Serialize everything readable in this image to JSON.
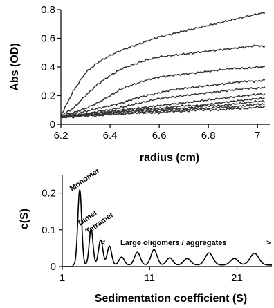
{
  "chart_data": [
    {
      "type": "line",
      "xlabel": "radius (cm)",
      "ylabel": "Abs (OD)",
      "xlim": [
        6.2,
        7.05
      ],
      "ylim": [
        0,
        0.8
      ],
      "xticks": [
        6.2,
        6.4,
        6.6,
        6.8,
        7
      ],
      "xtick_labels": [
        "6.2",
        "6.4",
        "6.6",
        "6.8",
        "7"
      ],
      "yticks": [
        0,
        0.2,
        0.4,
        0.6,
        0.8
      ],
      "ytick_labels": [
        "0",
        "0.2",
        "0.4",
        "0.6",
        "0.8"
      ],
      "grid": false,
      "line_color": "#333333",
      "x": [
        6.2,
        6.25,
        6.3,
        6.35,
        6.4,
        6.45,
        6.5,
        6.55,
        6.6,
        6.65,
        6.7,
        6.75,
        6.8,
        6.85,
        6.9,
        6.95,
        7.0,
        7.03
      ],
      "series": [
        {
          "values": [
            0.06,
            0.23,
            0.36,
            0.43,
            0.48,
            0.52,
            0.55,
            0.58,
            0.61,
            0.63,
            0.65,
            0.67,
            0.69,
            0.71,
            0.73,
            0.75,
            0.77,
            0.78
          ]
        },
        {
          "values": [
            0.06,
            0.11,
            0.2,
            0.28,
            0.34,
            0.39,
            0.42,
            0.45,
            0.47,
            0.48,
            0.49,
            0.5,
            0.51,
            0.52,
            0.53,
            0.54,
            0.55,
            0.54
          ]
        },
        {
          "values": [
            0.06,
            0.08,
            0.11,
            0.15,
            0.2,
            0.25,
            0.28,
            0.31,
            0.33,
            0.34,
            0.35,
            0.36,
            0.37,
            0.38,
            0.39,
            0.39,
            0.4,
            0.4
          ]
        },
        {
          "values": [
            0.05,
            0.07,
            0.09,
            0.11,
            0.13,
            0.15,
            0.18,
            0.2,
            0.22,
            0.24,
            0.25,
            0.26,
            0.27,
            0.28,
            0.29,
            0.3,
            0.3,
            0.31
          ]
        },
        {
          "values": [
            0.05,
            0.06,
            0.07,
            0.09,
            0.1,
            0.12,
            0.14,
            0.16,
            0.18,
            0.19,
            0.2,
            0.21,
            0.22,
            0.23,
            0.24,
            0.25,
            0.25,
            0.26
          ]
        },
        {
          "values": [
            0.05,
            0.06,
            0.07,
            0.08,
            0.09,
            0.1,
            0.11,
            0.12,
            0.13,
            0.14,
            0.15,
            0.16,
            0.17,
            0.18,
            0.19,
            0.2,
            0.21,
            0.21
          ]
        },
        {
          "values": [
            0.05,
            0.06,
            0.07,
            0.08,
            0.08,
            0.09,
            0.1,
            0.11,
            0.11,
            0.12,
            0.13,
            0.13,
            0.14,
            0.15,
            0.16,
            0.17,
            0.18,
            0.18
          ]
        },
        {
          "values": [
            0.05,
            0.06,
            0.07,
            0.07,
            0.08,
            0.09,
            0.09,
            0.1,
            0.1,
            0.11,
            0.11,
            0.12,
            0.13,
            0.13,
            0.14,
            0.15,
            0.16,
            0.16
          ]
        },
        {
          "values": [
            0.05,
            0.06,
            0.06,
            0.07,
            0.07,
            0.08,
            0.08,
            0.09,
            0.09,
            0.1,
            0.1,
            0.11,
            0.11,
            0.12,
            0.12,
            0.13,
            0.14,
            0.14
          ]
        },
        {
          "values": [
            0.05,
            0.05,
            0.06,
            0.06,
            0.07,
            0.07,
            0.08,
            0.08,
            0.08,
            0.09,
            0.09,
            0.1,
            0.1,
            0.1,
            0.11,
            0.11,
            0.12,
            0.12
          ]
        }
      ]
    },
    {
      "type": "line",
      "xlabel": "Sedimentation coefficient (S)",
      "ylabel": "c(S)",
      "xlim": [
        1,
        25
      ],
      "ylim": [
        0,
        0.25
      ],
      "xticks": [
        1,
        11,
        21
      ],
      "xtick_labels": [
        "1",
        "11",
        "21"
      ],
      "yticks": [
        0,
        0.1,
        0.2
      ],
      "ytick_labels": [
        "0",
        "0.1",
        "0.2"
      ],
      "grid": false,
      "line_color": "#000000",
      "baseline": 0.004,
      "peaks": [
        {
          "s": 3.0,
          "c": 0.205,
          "w": 0.22
        },
        {
          "s": 4.3,
          "c": 0.098,
          "w": 0.22
        },
        {
          "s": 5.4,
          "c": 0.068,
          "w": 0.25
        },
        {
          "s": 6.4,
          "c": 0.052,
          "w": 0.25
        },
        {
          "s": 7.8,
          "c": 0.022,
          "w": 0.3
        },
        {
          "s": 9.6,
          "c": 0.035,
          "w": 0.33
        },
        {
          "s": 11.5,
          "c": 0.042,
          "w": 0.35
        },
        {
          "s": 13.3,
          "c": 0.02,
          "w": 0.35
        },
        {
          "s": 15.3,
          "c": 0.018,
          "w": 0.4
        },
        {
          "s": 17.8,
          "c": 0.033,
          "w": 0.45
        },
        {
          "s": 20.7,
          "c": 0.018,
          "w": 0.45
        },
        {
          "s": 23.0,
          "c": 0.032,
          "w": 0.5
        }
      ],
      "annotations": {
        "monomer": "Monomer",
        "dimer": "Dimer",
        "tetramer": "Tetramer",
        "aggregates": "Large oligomers / aggregates",
        "left_marker": "<",
        "right_marker": ">"
      }
    }
  ]
}
